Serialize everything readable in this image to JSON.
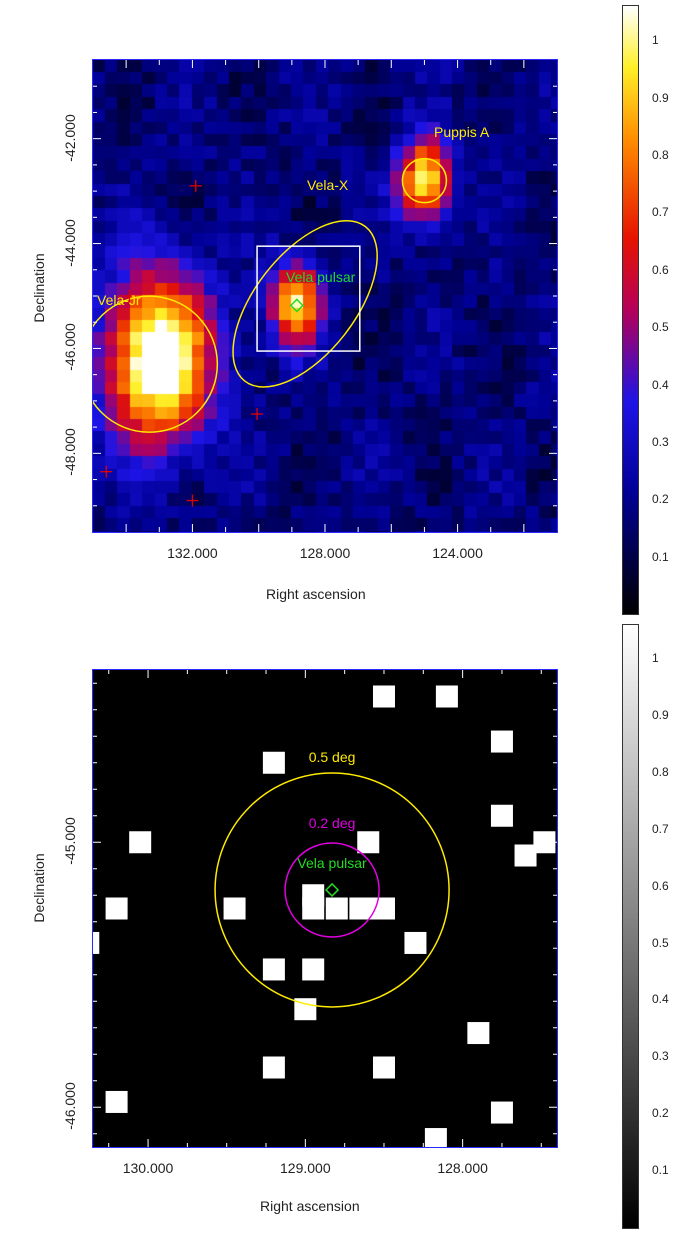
{
  "colors": {
    "frame": "#2a2aff",
    "annotation_yellow": "#ffeb00",
    "annotation_green": "#22dd22",
    "annotation_magenta": "#e000e0",
    "cross_red": "#e00000",
    "box_white": "#ffffff"
  },
  "chart_data": [
    {
      "type": "heatmap",
      "colormap": "heat (black-blue-red-yellow-white)",
      "xlabel": "Right ascension",
      "ylabel": "Declination",
      "xlim": [
        135.0,
        121.0
      ],
      "ylim": [
        -49.5,
        -40.5
      ],
      "xticks": [
        "132.000",
        "128.000",
        "124.000"
      ],
      "yticks": [
        "-42.000",
        "-44.000",
        "-46.000",
        "-48.000"
      ],
      "colorbar": {
        "range": [
          0,
          1
        ],
        "ticks": [
          "0.1",
          "0.2",
          "0.3",
          "0.4",
          "0.5",
          "0.6",
          "0.7",
          "0.8",
          "0.9",
          "1"
        ]
      },
      "sources": [
        {
          "name": "Puppis A",
          "ra": 125.0,
          "dec": -42.8,
          "sigma": 0.55,
          "amp": 0.78
        },
        {
          "name": "Vela pulsar",
          "ra": 128.85,
          "dec": -45.18,
          "sigma": 0.55,
          "amp": 0.75
        },
        {
          "name": "Vela-Jr",
          "ra": 133.0,
          "dec": -46.2,
          "sigma": 1.1,
          "amp": 1.0
        }
      ],
      "annotations": {
        "vela_jr_label": "Vela-Jr",
        "vela_x_label": "Vela-X",
        "puppis_label": "Puppis A",
        "pulsar_label": "Vela pulsar"
      },
      "crosses": [
        {
          "ra": 131.9,
          "dec": -42.9
        },
        {
          "ra": 133.9,
          "dec": -45.0
        },
        {
          "ra": 130.05,
          "dec": -47.25
        },
        {
          "ra": 134.6,
          "dec": -48.35
        },
        {
          "ra": 132.0,
          "dec": -48.9
        }
      ]
    },
    {
      "type": "heatmap",
      "colormap": "grayscale",
      "xlabel": "Right ascension",
      "ylabel": "Declination",
      "xlim": [
        130.35,
        127.4
      ],
      "ylim": [
        -46.15,
        -44.35
      ],
      "xticks": [
        "130.000",
        "129.000",
        "128.000"
      ],
      "yticks": [
        "-45.000",
        "-46.000"
      ],
      "colorbar": {
        "range": [
          0,
          1
        ],
        "ticks": [
          "0.1",
          "0.2",
          "0.3",
          "0.4",
          "0.5",
          "0.6",
          "0.7",
          "0.8",
          "0.9",
          "1"
        ]
      },
      "pulsar": {
        "name": "Vela pulsar",
        "ra": 128.83,
        "dec": -45.18
      },
      "circles": [
        {
          "label": "0.5 deg",
          "radius_deg": 0.5
        },
        {
          "label": "0.2 deg",
          "radius_deg": 0.2
        }
      ],
      "bright_pixels": [
        [
          128.5,
          -44.45
        ],
        [
          128.1,
          -44.45
        ],
        [
          127.75,
          -44.62
        ],
        [
          129.2,
          -44.7
        ],
        [
          127.75,
          -44.9
        ],
        [
          127.48,
          -45.0
        ],
        [
          130.05,
          -45.0
        ],
        [
          128.6,
          -45.0
        ],
        [
          127.6,
          -45.05
        ],
        [
          130.2,
          -45.25
        ],
        [
          129.45,
          -45.25
        ],
        [
          128.95,
          -45.25
        ],
        [
          128.8,
          -45.25
        ],
        [
          128.65,
          -45.25
        ],
        [
          128.6,
          -45.25
        ],
        [
          128.5,
          -45.25
        ],
        [
          128.95,
          -45.2
        ],
        [
          130.38,
          -45.38
        ],
        [
          129.2,
          -45.48
        ],
        [
          128.95,
          -45.48
        ],
        [
          128.3,
          -45.38
        ],
        [
          129.0,
          -45.63
        ],
        [
          127.9,
          -45.72
        ],
        [
          129.2,
          -45.85
        ],
        [
          128.5,
          -45.85
        ],
        [
          130.2,
          -45.98
        ],
        [
          127.75,
          -46.02
        ],
        [
          128.17,
          -46.12
        ]
      ]
    }
  ],
  "panels": {
    "top": {
      "xlabel": "Right ascension",
      "ylabel": "Declination"
    },
    "bottom": {
      "xlabel": "Right ascension",
      "ylabel": "Declination"
    }
  }
}
